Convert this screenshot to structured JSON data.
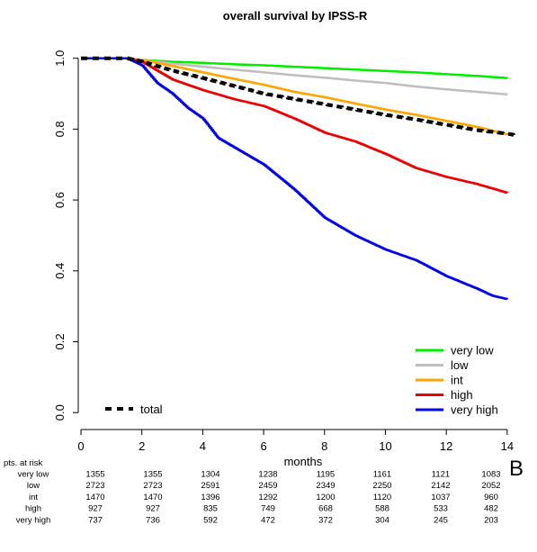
{
  "chart_data": {
    "type": "line",
    "title": "overall survival by IPSS-R",
    "xlabel": "months",
    "ylabel": "",
    "xlim": [
      0,
      14.3
    ],
    "ylim": [
      -0.03,
      1.05
    ],
    "x_ticks": [
      0,
      2,
      4,
      6,
      8,
      10,
      12,
      14
    ],
    "y_ticks": [
      0.0,
      0.2,
      0.4,
      0.6,
      0.8,
      1.0
    ],
    "x_tick_labels": [
      "0",
      "2",
      "4",
      "6",
      "8",
      "10",
      "12",
      "14"
    ],
    "y_tick_labels": [
      "0.0",
      "0.2",
      "0.4",
      "0.6",
      "0.8",
      "1.0"
    ],
    "grid": false,
    "legend_position": "bottom-right",
    "series": [
      {
        "name": "very low",
        "color": "#00ee00",
        "x": [
          0,
          1.5,
          2,
          3,
          4,
          5,
          6,
          7,
          8,
          9,
          10,
          11,
          12,
          13,
          14
        ],
        "y": [
          1.0,
          1.0,
          0.995,
          0.99,
          0.987,
          0.983,
          0.98,
          0.976,
          0.972,
          0.968,
          0.964,
          0.96,
          0.955,
          0.95,
          0.944
        ]
      },
      {
        "name": "low",
        "color": "#bebebe",
        "x": [
          0,
          1.5,
          2,
          3,
          4,
          5,
          6,
          7,
          8,
          9,
          10,
          11,
          12,
          13,
          14
        ],
        "y": [
          1.0,
          1.0,
          0.995,
          0.985,
          0.976,
          0.968,
          0.96,
          0.952,
          0.945,
          0.937,
          0.93,
          0.92,
          0.912,
          0.905,
          0.898
        ]
      },
      {
        "name": "int",
        "color": "#ffa500",
        "x": [
          0,
          1.5,
          2,
          3,
          4,
          5,
          6,
          7,
          8,
          9,
          10,
          11,
          12,
          13,
          14
        ],
        "y": [
          1.0,
          1.0,
          0.995,
          0.978,
          0.96,
          0.942,
          0.925,
          0.905,
          0.89,
          0.872,
          0.855,
          0.84,
          0.823,
          0.806,
          0.785
        ]
      },
      {
        "name": "high",
        "color": "#ee0000",
        "x": [
          0,
          1.5,
          2,
          2.5,
          3,
          4,
          5,
          6,
          7,
          8,
          9,
          10,
          11,
          12,
          13,
          14
        ],
        "y": [
          1.0,
          1.0,
          0.99,
          0.965,
          0.94,
          0.91,
          0.885,
          0.865,
          0.83,
          0.79,
          0.765,
          0.73,
          0.69,
          0.665,
          0.645,
          0.62
        ]
      },
      {
        "name": "very high",
        "color": "#0000ee",
        "x": [
          0,
          1.5,
          2,
          2.5,
          3,
          3.5,
          4,
          4.5,
          5,
          6,
          7,
          8,
          9,
          10,
          11,
          12,
          13,
          13.5,
          14
        ],
        "y": [
          1.0,
          1.0,
          0.98,
          0.93,
          0.9,
          0.86,
          0.83,
          0.775,
          0.75,
          0.7,
          0.63,
          0.55,
          0.5,
          0.46,
          0.43,
          0.385,
          0.35,
          0.33,
          0.32
        ]
      },
      {
        "name": "total",
        "color": "#000000",
        "dashed": true,
        "x": [
          0,
          1.5,
          2,
          3,
          4,
          5,
          6,
          7,
          8,
          9,
          10,
          11,
          12,
          13,
          14,
          14.3
        ],
        "y": [
          1.0,
          1.0,
          0.99,
          0.965,
          0.944,
          0.922,
          0.9,
          0.885,
          0.87,
          0.855,
          0.84,
          0.827,
          0.812,
          0.797,
          0.787,
          0.782
        ]
      }
    ],
    "legend": {
      "entries": [
        {
          "label": "very low",
          "color": "#00ee00"
        },
        {
          "label": "low",
          "color": "#bebebe"
        },
        {
          "label": "int",
          "color": "#ffa500"
        },
        {
          "label": "high",
          "color": "#ee0000"
        },
        {
          "label": "very high",
          "color": "#0000ee"
        }
      ],
      "total_label": "total"
    },
    "risk_table": {
      "header": "pts. at risk",
      "rows": [
        {
          "label": "very low",
          "values": [
            "1355",
            "1355",
            "1304",
            "1238",
            "1195",
            "1161",
            "1121",
            "1083"
          ]
        },
        {
          "label": "low",
          "values": [
            "2723",
            "2723",
            "2591",
            "2459",
            "2349",
            "2250",
            "2142",
            "2052"
          ]
        },
        {
          "label": "int",
          "values": [
            "1470",
            "1470",
            "1396",
            "1292",
            "1200",
            "1120",
            "1037",
            "960"
          ]
        },
        {
          "label": "high",
          "values": [
            "927",
            "927",
            "835",
            "749",
            "668",
            "588",
            "533",
            "482"
          ]
        },
        {
          "label": "very high",
          "values": [
            "737",
            "736",
            "592",
            "472",
            "372",
            "304",
            "245",
            "203"
          ]
        }
      ]
    },
    "panel_label": "B"
  }
}
